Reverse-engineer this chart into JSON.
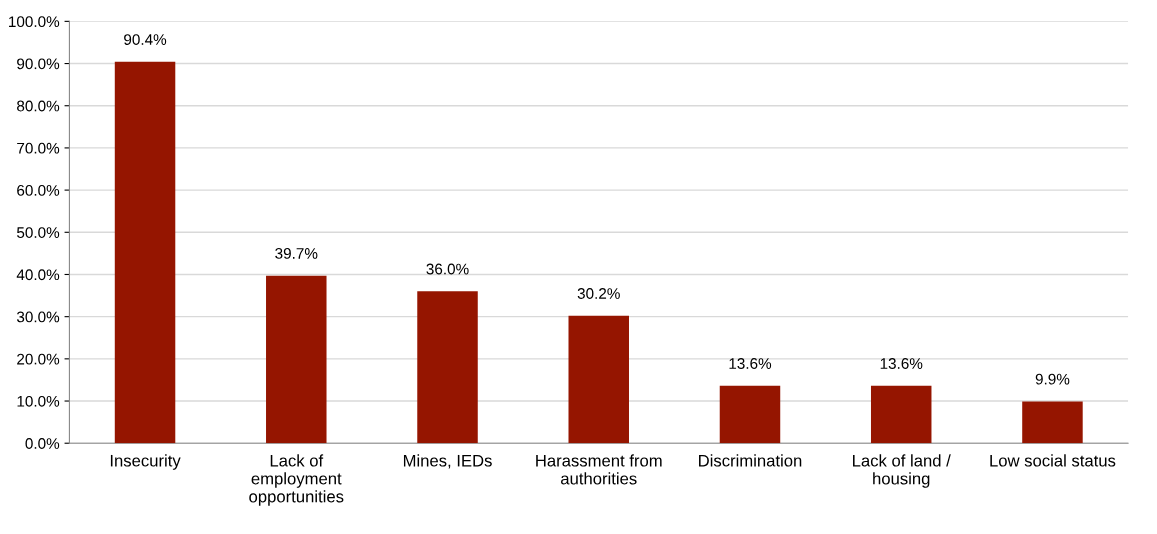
{
  "chart_data": {
    "type": "bar",
    "categories": [
      "Insecurity",
      "Lack of\nemployment\nopportunities",
      "Mines, IEDs",
      "Harassment from\nauthorities",
      "Discrimination",
      "Lack of land /\nhousing",
      "Low social status"
    ],
    "values": [
      90.4,
      39.7,
      36.0,
      30.2,
      13.6,
      13.6,
      9.9
    ],
    "value_labels": [
      "90.4%",
      "39.7%",
      "36.0%",
      "30.2%",
      "13.6%",
      "13.6%",
      "9.9%"
    ],
    "color": "#951500",
    "ylim": [
      0,
      100
    ],
    "yticks": [
      {
        "value": 0,
        "label": "0.0%"
      },
      {
        "value": 10,
        "label": "10.0%"
      },
      {
        "value": 20,
        "label": "20.0%"
      },
      {
        "value": 30,
        "label": "30.0%"
      },
      {
        "value": 40,
        "label": "40.0%"
      },
      {
        "value": 50,
        "label": "50.0%"
      },
      {
        "value": 60,
        "label": "60.0%"
      },
      {
        "value": 70,
        "label": "70.0%"
      },
      {
        "value": 80,
        "label": "80.0%"
      },
      {
        "value": 90,
        "label": "90.0%"
      },
      {
        "value": 100,
        "label": "100.0%"
      }
    ],
    "grid": "y"
  }
}
